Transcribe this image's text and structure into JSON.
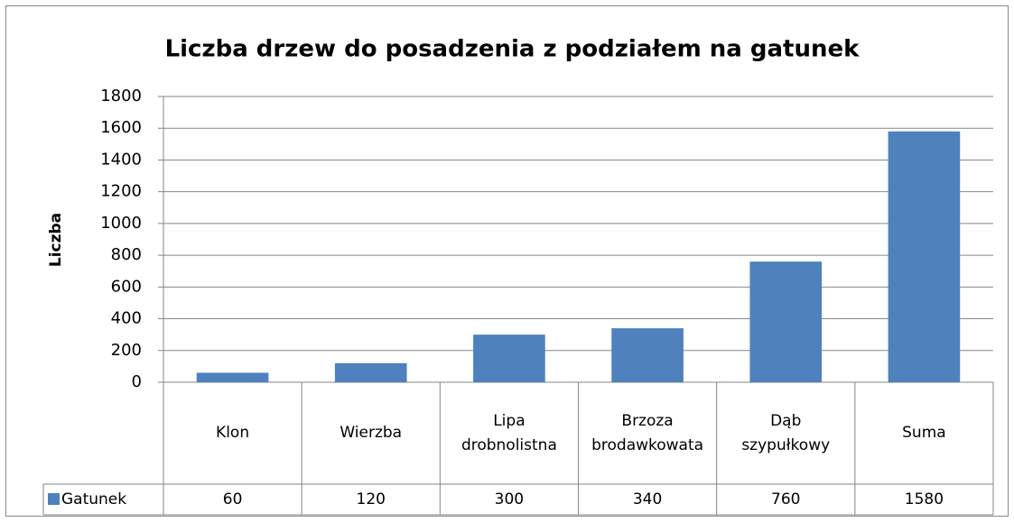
{
  "chart_data": {
    "type": "bar",
    "title": "Liczba drzew do posadzenia z podziałem na gatunek",
    "y_label": "Liczba",
    "categories": [
      "Klon",
      "Wierzba",
      "Lipa drobnolistna",
      "Brzoza brodawkowata",
      "Dąb szypułkowy",
      "Suma"
    ],
    "series": [
      {
        "name": "Gatunek",
        "color": "#4f81bd",
        "values": [
          60,
          120,
          300,
          340,
          760,
          1580
        ]
      }
    ],
    "ylim": [
      0,
      1800
    ],
    "yticks": [
      0,
      200,
      400,
      600,
      800,
      1000,
      1200,
      1400,
      1600,
      1800
    ],
    "grid": true,
    "data_table": true
  }
}
